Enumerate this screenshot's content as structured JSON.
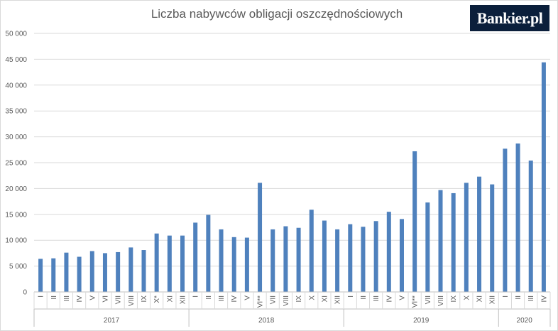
{
  "brand": {
    "logo_text": "Bankier.pl"
  },
  "chart_data": {
    "type": "bar",
    "title": "Liczba nabywców obligacji oszczędnościowych",
    "xlabel": "",
    "ylabel": "",
    "ylim": [
      0,
      50000
    ],
    "y_ticks": [
      0,
      5000,
      10000,
      15000,
      20000,
      25000,
      30000,
      35000,
      40000,
      45000,
      50000
    ],
    "y_tick_labels": [
      "0",
      "5 000",
      "10 000",
      "15 000",
      "20 000",
      "25 000",
      "30 000",
      "35 000",
      "40 000",
      "45 000",
      "50 000"
    ],
    "grid": true,
    "legend": "none",
    "bar_color": "#4f81bd",
    "categories": [
      "I",
      "II",
      "III",
      "IV",
      "V",
      "VI",
      "VII",
      "VIII",
      "IX",
      "X*",
      "XI",
      "XII",
      "I",
      "II",
      "III",
      "IV",
      "V",
      "VI**",
      "VII",
      "VIII",
      "IX",
      "X",
      "XI",
      "XII",
      "I",
      "II",
      "III",
      "IV",
      "V",
      "VI**",
      "VII",
      "VIII",
      "IX",
      "X",
      "XI",
      "XII",
      "I",
      "II",
      "III",
      "IV"
    ],
    "groups": [
      {
        "label": "2017",
        "count": 12
      },
      {
        "label": "2018",
        "count": 12
      },
      {
        "label": "2019",
        "count": 12
      },
      {
        "label": "2020",
        "count": 4
      }
    ],
    "values": [
      6400,
      6500,
      7600,
      6800,
      7900,
      7500,
      7700,
      8600,
      8100,
      11300,
      10900,
      10900,
      13400,
      14900,
      12100,
      10600,
      10500,
      21100,
      12100,
      12700,
      12400,
      15900,
      13800,
      12100,
      13100,
      12600,
      13700,
      15500,
      14100,
      27200,
      17300,
      19700,
      19100,
      21100,
      22300,
      20800,
      27700,
      28700,
      25400,
      44400
    ]
  }
}
